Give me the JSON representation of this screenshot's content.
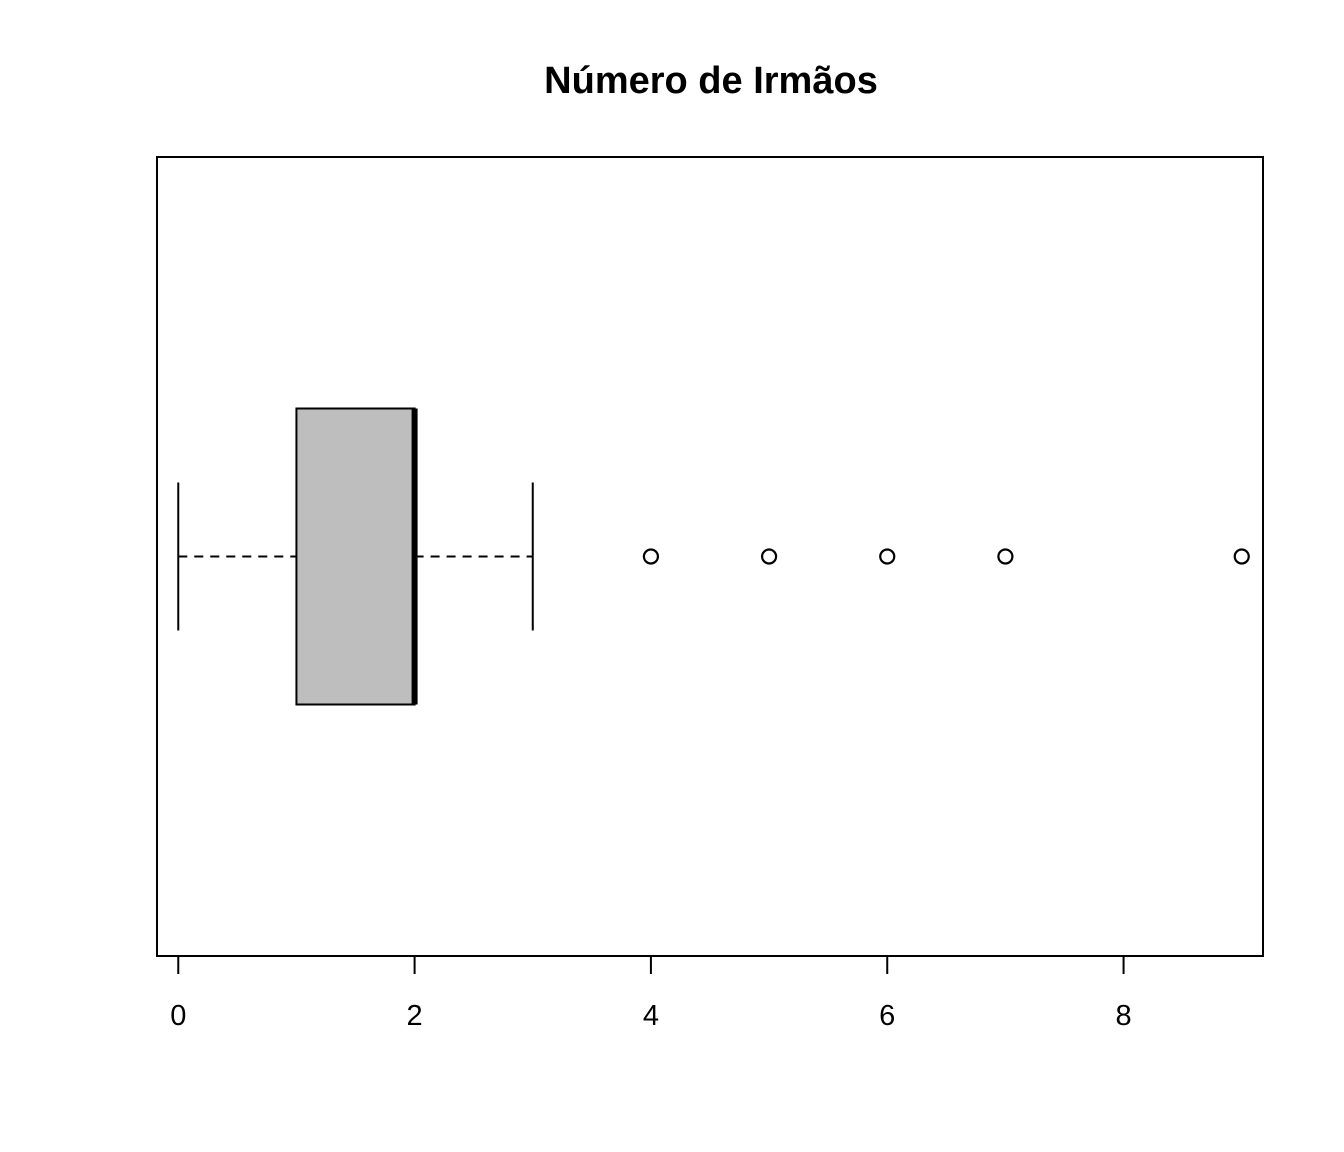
{
  "chart_data": {
    "type": "boxplot",
    "orientation": "horizontal",
    "title": "Número de Irmãos",
    "xlabel": "",
    "ylabel": "",
    "xlim": [
      -0.18,
      9.18
    ],
    "x_ticks": [
      0,
      2,
      4,
      6,
      8
    ],
    "box": {
      "whisker_low": 0,
      "q1": 1,
      "median": 2,
      "q3": 2,
      "whisker_high": 3,
      "outliers": [
        4,
        5,
        6,
        7,
        9
      ]
    },
    "box_fill": "#bebebe",
    "grid": false,
    "legend": "none"
  }
}
